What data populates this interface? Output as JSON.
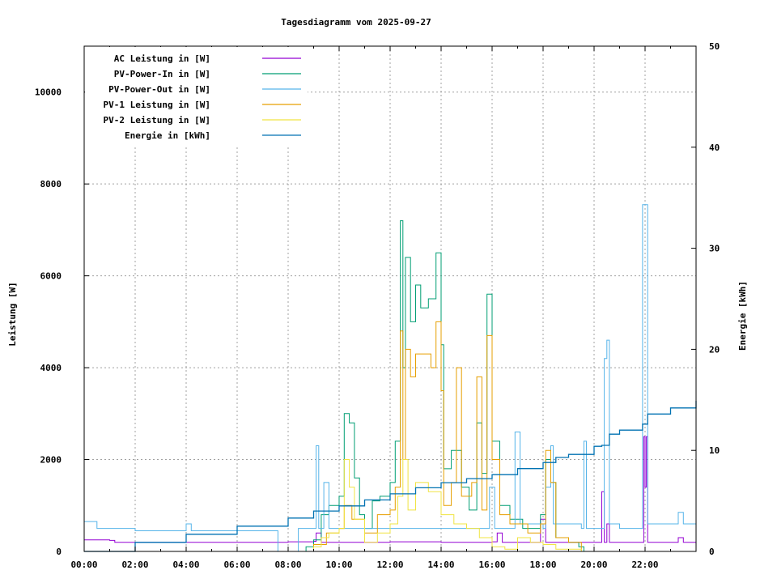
{
  "chart_data": {
    "type": "line",
    "title": "Tagesdiagramm vom 2025-09-27",
    "ylabel": "Leistung [W]",
    "y2label": "Energie [kWh]",
    "xlabel": "",
    "xlim": [
      0,
      24
    ],
    "ylim": [
      0,
      11000
    ],
    "y2lim": [
      0,
      50
    ],
    "grid": true,
    "legend_position": "top-left",
    "xticks": [
      "00:00",
      "02:00",
      "04:00",
      "06:00",
      "08:00",
      "10:00",
      "12:00",
      "14:00",
      "16:00",
      "18:00",
      "20:00",
      "22:00"
    ],
    "yticks": [
      0,
      2000,
      4000,
      6000,
      8000,
      10000
    ],
    "y2ticks": [
      0,
      10,
      20,
      30,
      40,
      50
    ],
    "series": [
      {
        "name": "AC Leistung in [W]",
        "axis": "y",
        "color": "#9400d3",
        "points": [
          [
            0,
            250
          ],
          [
            1,
            240
          ],
          [
            1.2,
            200
          ],
          [
            4,
            200
          ],
          [
            6,
            200
          ],
          [
            8,
            210
          ],
          [
            9,
            220
          ],
          [
            9.1,
            400
          ],
          [
            9.3,
            200
          ],
          [
            12,
            210
          ],
          [
            14,
            200
          ],
          [
            16,
            210
          ],
          [
            16.2,
            400
          ],
          [
            16.4,
            200
          ],
          [
            17.8,
            200
          ],
          [
            17.9,
            700
          ],
          [
            18.1,
            200
          ],
          [
            20,
            200
          ],
          [
            20.3,
            1300
          ],
          [
            20.4,
            200
          ],
          [
            20.5,
            600
          ],
          [
            20.6,
            200
          ],
          [
            21.9,
            200
          ],
          [
            21.95,
            2500
          ],
          [
            22.0,
            1400
          ],
          [
            22.05,
            2500
          ],
          [
            22.1,
            200
          ],
          [
            23.2,
            200
          ],
          [
            23.3,
            300
          ],
          [
            23.5,
            200
          ],
          [
            24,
            200
          ]
        ]
      },
      {
        "name": "PV-Power-In in [W]",
        "axis": "y",
        "color": "#009e73",
        "points": [
          [
            8.2,
            0
          ],
          [
            8.7,
            100
          ],
          [
            9,
            250
          ],
          [
            9.3,
            800
          ],
          [
            9.6,
            1000
          ],
          [
            10,
            1200
          ],
          [
            10.2,
            3000
          ],
          [
            10.4,
            2800
          ],
          [
            10.6,
            1600
          ],
          [
            10.8,
            800
          ],
          [
            11,
            500
          ],
          [
            11.3,
            1100
          ],
          [
            11.6,
            1200
          ],
          [
            12,
            1500
          ],
          [
            12.2,
            2400
          ],
          [
            12.4,
            7200
          ],
          [
            12.5,
            4000
          ],
          [
            12.6,
            6400
          ],
          [
            12.8,
            5000
          ],
          [
            13,
            5800
          ],
          [
            13.2,
            5300
          ],
          [
            13.5,
            5500
          ],
          [
            13.8,
            6500
          ],
          [
            14,
            4500
          ],
          [
            14.1,
            1800
          ],
          [
            14.4,
            2200
          ],
          [
            14.8,
            1400
          ],
          [
            15.1,
            900
          ],
          [
            15.4,
            2800
          ],
          [
            15.6,
            1700
          ],
          [
            15.8,
            5600
          ],
          [
            16,
            2400
          ],
          [
            16.3,
            1000
          ],
          [
            16.7,
            700
          ],
          [
            17.2,
            500
          ],
          [
            17.6,
            500
          ],
          [
            17.9,
            800
          ],
          [
            18.1,
            2000
          ],
          [
            18.3,
            1500
          ],
          [
            18.5,
            300
          ],
          [
            19,
            200
          ],
          [
            19.4,
            100
          ],
          [
            19.6,
            0
          ]
        ]
      },
      {
        "name": "PV-Power-Out in [W]",
        "axis": "y",
        "color": "#56b4e9",
        "points": [
          [
            0,
            650
          ],
          [
            0.5,
            500
          ],
          [
            2,
            450
          ],
          [
            3.8,
            450
          ],
          [
            4,
            600
          ],
          [
            4.2,
            450
          ],
          [
            6,
            450
          ],
          [
            7.5,
            450
          ],
          [
            7.6,
            0
          ],
          [
            8.3,
            0
          ],
          [
            8.4,
            500
          ],
          [
            9,
            500
          ],
          [
            9.1,
            2300
          ],
          [
            9.2,
            500
          ],
          [
            9.4,
            1500
          ],
          [
            9.6,
            500
          ],
          [
            12,
            500
          ],
          [
            14,
            500
          ],
          [
            15.8,
            500
          ],
          [
            15.9,
            1400
          ],
          [
            16.1,
            500
          ],
          [
            16.8,
            500
          ],
          [
            16.9,
            2600
          ],
          [
            17.1,
            600
          ],
          [
            18,
            500
          ],
          [
            18.1,
            1400
          ],
          [
            18.3,
            2300
          ],
          [
            18.4,
            600
          ],
          [
            19.5,
            500
          ],
          [
            19.6,
            2400
          ],
          [
            19.7,
            500
          ],
          [
            20.3,
            500
          ],
          [
            20.4,
            4200
          ],
          [
            20.5,
            4600
          ],
          [
            20.6,
            600
          ],
          [
            21,
            500
          ],
          [
            21.8,
            500
          ],
          [
            21.9,
            7550
          ],
          [
            22.05,
            7550
          ],
          [
            22.1,
            600
          ],
          [
            23.2,
            600
          ],
          [
            23.3,
            850
          ],
          [
            23.5,
            600
          ],
          [
            24,
            550
          ]
        ]
      },
      {
        "name": "PV-1 Leistung in [W]",
        "axis": "y",
        "color": "#e69f00",
        "points": [
          [
            8.2,
            0
          ],
          [
            9,
            150
          ],
          [
            9.5,
            400
          ],
          [
            10,
            500
          ],
          [
            10.2,
            1000
          ],
          [
            10.5,
            700
          ],
          [
            11,
            400
          ],
          [
            11.5,
            800
          ],
          [
            12,
            900
          ],
          [
            12.2,
            1400
          ],
          [
            12.4,
            4800
          ],
          [
            12.5,
            2000
          ],
          [
            12.6,
            4400
          ],
          [
            12.8,
            3800
          ],
          [
            13,
            4300
          ],
          [
            13.3,
            4300
          ],
          [
            13.6,
            4000
          ],
          [
            13.8,
            5000
          ],
          [
            14,
            3500
          ],
          [
            14.1,
            1000
          ],
          [
            14.4,
            1500
          ],
          [
            14.6,
            4000
          ],
          [
            14.8,
            1200
          ],
          [
            15.2,
            1500
          ],
          [
            15.4,
            3800
          ],
          [
            15.6,
            900
          ],
          [
            15.8,
            4700
          ],
          [
            16,
            2000
          ],
          [
            16.3,
            800
          ],
          [
            16.7,
            600
          ],
          [
            17.4,
            400
          ],
          [
            17.9,
            600
          ],
          [
            18.1,
            2200
          ],
          [
            18.3,
            1500
          ],
          [
            18.5,
            300
          ],
          [
            19,
            200
          ],
          [
            19.5,
            0
          ]
        ]
      },
      {
        "name": "PV-2 Leistung in [W]",
        "axis": "y",
        "color": "#f0e442",
        "points": [
          [
            8.2,
            0
          ],
          [
            9,
            100
          ],
          [
            9.3,
            300
          ],
          [
            9.6,
            400
          ],
          [
            10,
            500
          ],
          [
            10.2,
            2000
          ],
          [
            10.4,
            1400
          ],
          [
            10.6,
            700
          ],
          [
            11,
            200
          ],
          [
            11.5,
            400
          ],
          [
            12,
            600
          ],
          [
            12.3,
            1200
          ],
          [
            12.5,
            2000
          ],
          [
            12.7,
            900
          ],
          [
            13,
            1500
          ],
          [
            13.5,
            1300
          ],
          [
            14,
            800
          ],
          [
            14.5,
            600
          ],
          [
            15,
            500
          ],
          [
            15.5,
            300
          ],
          [
            16,
            100
          ],
          [
            16.5,
            50
          ],
          [
            17,
            300
          ],
          [
            17.5,
            200
          ],
          [
            18,
            150
          ],
          [
            18.5,
            50
          ],
          [
            19.5,
            0
          ]
        ]
      },
      {
        "name": "Energie in [kWh]",
        "axis": "y2",
        "color": "#0072b2",
        "points": [
          [
            0,
            0
          ],
          [
            2,
            0.9
          ],
          [
            4,
            1.7
          ],
          [
            6,
            2.5
          ],
          [
            8,
            3.3
          ],
          [
            9,
            4.0
          ],
          [
            10,
            4.5
          ],
          [
            11,
            5.1
          ],
          [
            12,
            5.7
          ],
          [
            13,
            6.3
          ],
          [
            14,
            6.8
          ],
          [
            15,
            7.2
          ],
          [
            16,
            7.6
          ],
          [
            17,
            8.2
          ],
          [
            18,
            8.8
          ],
          [
            18.5,
            9.3
          ],
          [
            19,
            9.6
          ],
          [
            20,
            10.4
          ],
          [
            20.3,
            10.5
          ],
          [
            20.6,
            11.6
          ],
          [
            21,
            12.0
          ],
          [
            21.9,
            12.6
          ],
          [
            22.1,
            13.6
          ],
          [
            23,
            14.2
          ],
          [
            24,
            14.9
          ]
        ]
      }
    ]
  }
}
